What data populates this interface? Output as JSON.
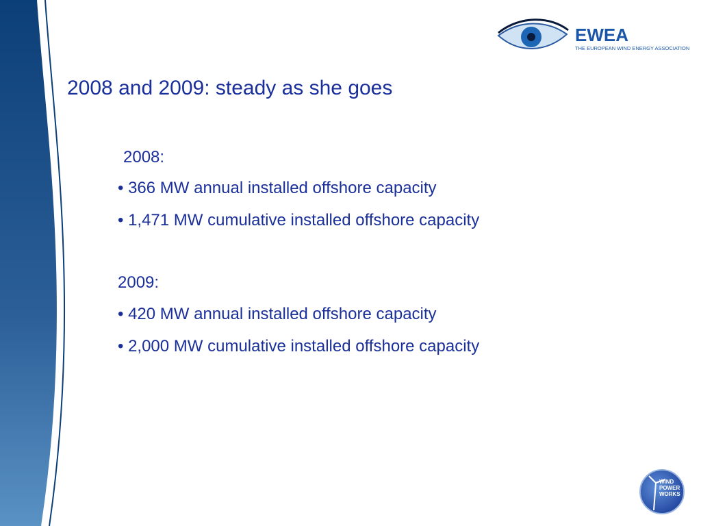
{
  "header": {
    "logo_name": "EWEA",
    "logo_subtitle": "THE EUROPEAN WIND ENERGY ASSOCIATION"
  },
  "title": "2008 and 2009: steady as she goes",
  "sections": [
    {
      "heading": "2008:",
      "bullets": [
        "• 366 MW annual installed offshore capacity",
        "• 1,471 MW cumulative installed offshore capacity"
      ]
    },
    {
      "heading": "2009:",
      "bullets": [
        "• 420 MW annual installed offshore capacity",
        "• 2,000 MW cumulative installed offshore capacity"
      ]
    }
  ],
  "badge": {
    "lines": [
      "WIND",
      "POWER",
      "WORKS"
    ]
  }
}
